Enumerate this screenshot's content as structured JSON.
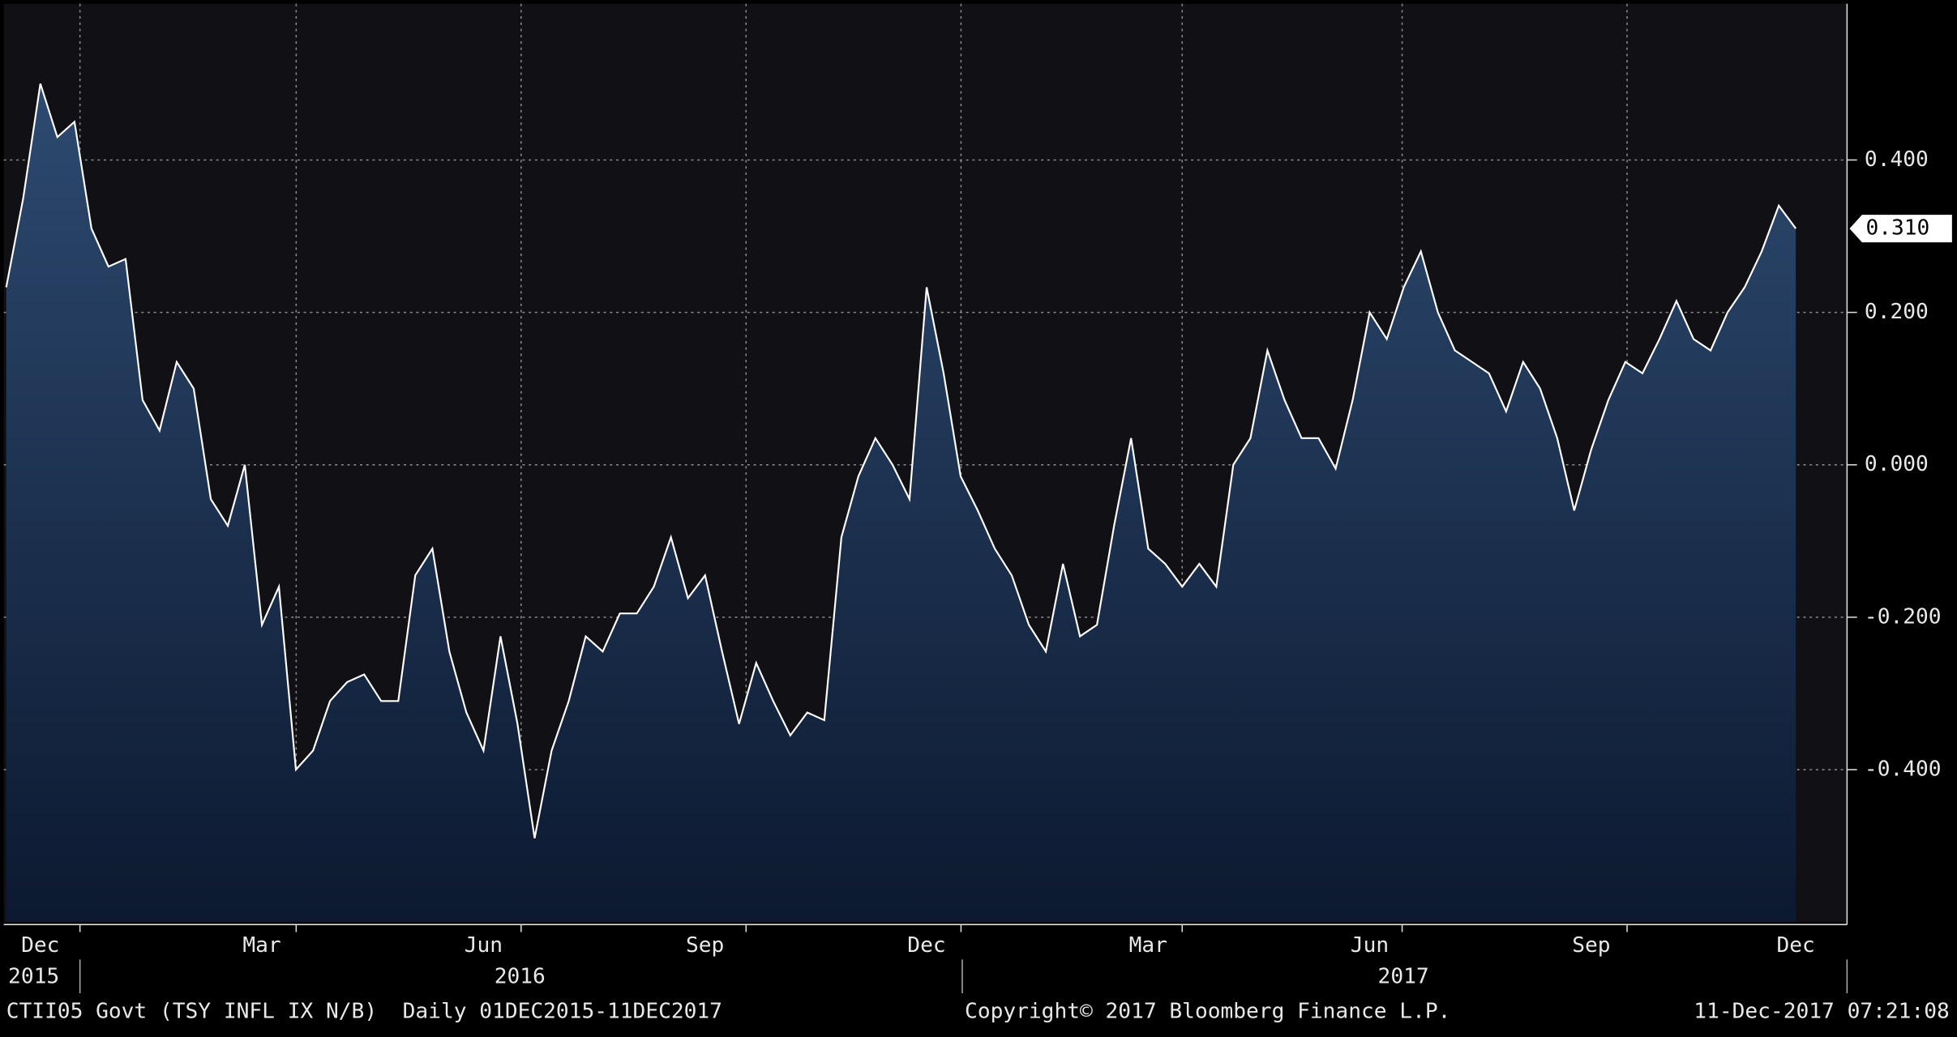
{
  "chart_data": {
    "type": "area",
    "categories": [
      null,
      null,
      "Dec",
      null,
      null,
      null,
      null,
      null,
      null,
      null,
      null,
      null,
      null,
      null,
      null,
      "Mar",
      null,
      null,
      null,
      null,
      null,
      null,
      null,
      null,
      null,
      null,
      null,
      null,
      "Jun",
      null,
      null,
      null,
      null,
      null,
      null,
      null,
      null,
      null,
      null,
      null,
      null,
      "Sep",
      null,
      null,
      null,
      null,
      null,
      null,
      null,
      null,
      null,
      null,
      null,
      null,
      "Dec",
      null,
      null,
      null,
      null,
      null,
      null,
      null,
      null,
      null,
      null,
      null,
      null,
      "Mar",
      null,
      null,
      null,
      null,
      null,
      null,
      null,
      null,
      null,
      null,
      null,
      null,
      "Jun",
      null,
      null,
      null,
      null,
      null,
      null,
      null,
      null,
      null,
      null,
      null,
      null,
      "Sep",
      null,
      null,
      null,
      null,
      null,
      null,
      null,
      null,
      null,
      null,
      null,
      "Dec"
    ],
    "values": [
      0.233,
      0.35,
      0.5,
      0.43,
      0.45,
      0.31,
      0.26,
      0.27,
      0.085,
      0.045,
      0.135,
      0.1,
      -0.045,
      -0.08,
      0.0,
      -0.21,
      -0.16,
      -0.4,
      -0.375,
      -0.31,
      -0.285,
      -0.275,
      -0.31,
      -0.31,
      -0.145,
      -0.11,
      -0.245,
      -0.325,
      -0.375,
      -0.225,
      -0.34,
      -0.49,
      -0.375,
      -0.31,
      -0.225,
      -0.245,
      -0.195,
      -0.195,
      -0.16,
      -0.095,
      -0.175,
      -0.145,
      -0.245,
      -0.34,
      -0.26,
      -0.31,
      -0.355,
      -0.325,
      -0.335,
      -0.095,
      -0.015,
      0.035,
      0.0,
      -0.045,
      0.233,
      0.12,
      -0.015,
      -0.06,
      -0.11,
      -0.145,
      -0.21,
      -0.245,
      -0.13,
      -0.225,
      -0.21,
      -0.08,
      0.035,
      -0.11,
      -0.13,
      -0.16,
      -0.13,
      -0.16,
      0.0,
      0.035,
      0.15,
      0.085,
      0.035,
      0.035,
      -0.005,
      0.085,
      0.2,
      0.165,
      0.233,
      0.28,
      0.2,
      0.15,
      0.135,
      0.12,
      0.07,
      0.135,
      0.1,
      0.035,
      -0.06,
      0.02,
      0.085,
      0.135,
      0.12,
      0.165,
      0.215,
      0.165,
      0.15,
      0.2,
      0.233,
      0.28,
      0.34,
      0.31
    ],
    "last_value_label": "0.310",
    "year_labels": [
      "2015",
      "2016",
      "2017"
    ],
    "ylim": [
      -0.6,
      0.605
    ],
    "yticks": [
      {
        "value": -0.4,
        "label": "-0.400"
      },
      {
        "value": -0.2,
        "label": "-0.200"
      },
      {
        "value": 0,
        "label": "0.000"
      },
      {
        "value": 0.2,
        "label": "0.200"
      },
      {
        "value": 0.4,
        "label": "0.400"
      }
    ],
    "grid": true,
    "color": "#ffffff",
    "footer_left": "CTII05 Govt (TSY INFL IX N/B)  Daily 01DEC2015-11DEC2017",
    "footer_center": "Copyright© 2017 Bloomberg Finance L.P.",
    "footer_right": "11-Dec-2017 07:21:08"
  }
}
